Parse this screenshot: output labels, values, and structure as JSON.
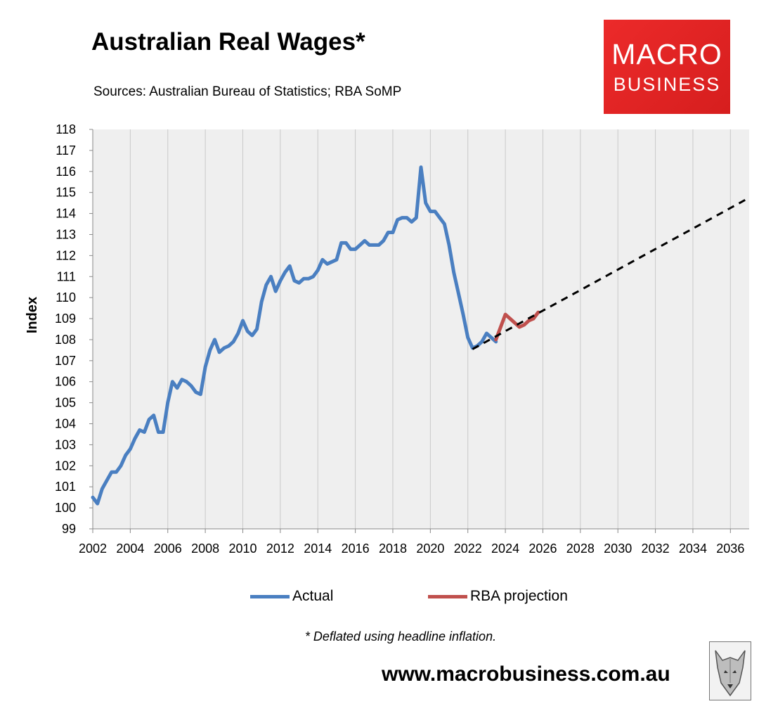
{
  "header": {
    "title": "Australian Real Wages*",
    "subtitle": "Sources: Australian Bureau of Statistics; RBA SoMP"
  },
  "logo": {
    "line1": "MACRO",
    "line2": "BUSINESS",
    "color": "#e32222"
  },
  "chart_data": {
    "type": "line",
    "title": "Australian Real Wages*",
    "ylabel": "Index",
    "xlabel": "",
    "ylim": [
      99,
      118
    ],
    "xlim": [
      2002,
      2037
    ],
    "yticks": [
      99,
      100,
      101,
      102,
      103,
      104,
      105,
      106,
      107,
      108,
      109,
      110,
      111,
      112,
      113,
      114,
      115,
      116,
      117,
      118
    ],
    "xticks": [
      2002,
      2004,
      2006,
      2008,
      2010,
      2012,
      2014,
      2016,
      2018,
      2020,
      2022,
      2024,
      2026,
      2028,
      2030,
      2032,
      2034,
      2036
    ],
    "grid": "vertical",
    "legend": "bottom",
    "series": [
      {
        "name": "Actual",
        "color": "#4a7fc1",
        "points": [
          [
            2002.0,
            100.5
          ],
          [
            2002.25,
            100.2
          ],
          [
            2002.5,
            100.9
          ],
          [
            2002.75,
            101.3
          ],
          [
            2003.0,
            101.7
          ],
          [
            2003.25,
            101.7
          ],
          [
            2003.5,
            102.0
          ],
          [
            2003.75,
            102.5
          ],
          [
            2004.0,
            102.8
          ],
          [
            2004.25,
            103.3
          ],
          [
            2004.5,
            103.7
          ],
          [
            2004.75,
            103.6
          ],
          [
            2005.0,
            104.2
          ],
          [
            2005.25,
            104.4
          ],
          [
            2005.5,
            103.6
          ],
          [
            2005.75,
            103.6
          ],
          [
            2006.0,
            105.0
          ],
          [
            2006.25,
            106.0
          ],
          [
            2006.5,
            105.7
          ],
          [
            2006.75,
            106.1
          ],
          [
            2007.0,
            106.0
          ],
          [
            2007.25,
            105.8
          ],
          [
            2007.5,
            105.5
          ],
          [
            2007.75,
            105.4
          ],
          [
            2008.0,
            106.7
          ],
          [
            2008.25,
            107.5
          ],
          [
            2008.5,
            108.0
          ],
          [
            2008.75,
            107.4
          ],
          [
            2009.0,
            107.6
          ],
          [
            2009.25,
            107.7
          ],
          [
            2009.5,
            107.9
          ],
          [
            2009.75,
            108.3
          ],
          [
            2010.0,
            108.9
          ],
          [
            2010.25,
            108.4
          ],
          [
            2010.5,
            108.2
          ],
          [
            2010.75,
            108.5
          ],
          [
            2011.0,
            109.8
          ],
          [
            2011.25,
            110.6
          ],
          [
            2011.5,
            111.0
          ],
          [
            2011.75,
            110.3
          ],
          [
            2012.0,
            110.8
          ],
          [
            2012.25,
            111.2
          ],
          [
            2012.5,
            111.5
          ],
          [
            2012.75,
            110.8
          ],
          [
            2013.0,
            110.7
          ],
          [
            2013.25,
            110.9
          ],
          [
            2013.5,
            110.9
          ],
          [
            2013.75,
            111.0
          ],
          [
            2014.0,
            111.3
          ],
          [
            2014.25,
            111.8
          ],
          [
            2014.5,
            111.6
          ],
          [
            2014.75,
            111.7
          ],
          [
            2015.0,
            111.8
          ],
          [
            2015.25,
            112.6
          ],
          [
            2015.5,
            112.6
          ],
          [
            2015.75,
            112.3
          ],
          [
            2016.0,
            112.3
          ],
          [
            2016.25,
            112.5
          ],
          [
            2016.5,
            112.7
          ],
          [
            2016.75,
            112.5
          ],
          [
            2017.0,
            112.5
          ],
          [
            2017.25,
            112.5
          ],
          [
            2017.5,
            112.7
          ],
          [
            2017.75,
            113.1
          ],
          [
            2018.0,
            113.1
          ],
          [
            2018.25,
            113.7
          ],
          [
            2018.5,
            113.8
          ],
          [
            2018.75,
            113.8
          ],
          [
            2019.0,
            113.6
          ],
          [
            2019.25,
            113.8
          ],
          [
            2019.5,
            116.2
          ],
          [
            2019.75,
            114.5
          ],
          [
            2020.0,
            114.1
          ],
          [
            2020.25,
            114.1
          ],
          [
            2020.5,
            113.8
          ],
          [
            2020.75,
            113.5
          ],
          [
            2021.0,
            112.5
          ],
          [
            2021.25,
            111.2
          ],
          [
            2021.5,
            110.2
          ],
          [
            2021.75,
            109.2
          ],
          [
            2022.0,
            108.1
          ],
          [
            2022.25,
            107.6
          ],
          [
            2022.5,
            107.7
          ],
          [
            2022.75,
            107.9
          ],
          [
            2023.0,
            108.3
          ],
          [
            2023.25,
            108.1
          ],
          [
            2023.5,
            107.9
          ]
        ]
      },
      {
        "name": "RBA projection",
        "color": "#c0504d",
        "points": [
          [
            2023.5,
            108.0
          ],
          [
            2023.75,
            108.6
          ],
          [
            2024.0,
            109.2
          ],
          [
            2024.25,
            109.0
          ],
          [
            2024.5,
            108.8
          ],
          [
            2024.75,
            108.6
          ],
          [
            2025.0,
            108.7
          ],
          [
            2025.25,
            108.9
          ],
          [
            2025.5,
            109.0
          ],
          [
            2025.75,
            109.3
          ]
        ]
      },
      {
        "name": "",
        "color": "#000000",
        "dashed": true,
        "points": [
          [
            2022.25,
            107.55
          ],
          [
            2037.0,
            114.75
          ]
        ]
      }
    ]
  },
  "legend": {
    "actual": "Actual",
    "projection": "RBA projection"
  },
  "footnote": "* Deflated using headline inflation.",
  "website": "www.macrobusiness.com.au",
  "colors": {
    "plot_bg": "#efefef",
    "grid": "#c9c9c9"
  }
}
